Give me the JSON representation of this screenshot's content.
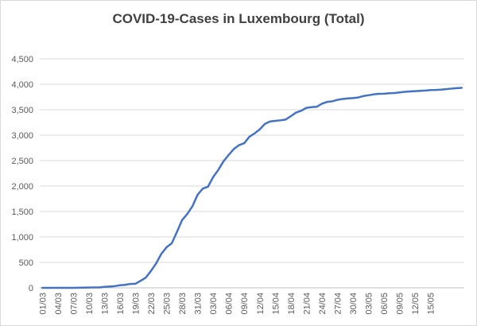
{
  "chart_data": {
    "type": "line",
    "title": "COVID-19-Cases in Luxembourg (Total)",
    "xlabel": "",
    "ylabel": "",
    "ylim": [
      0,
      4500
    ],
    "y_ticks": [
      0,
      500,
      1000,
      1500,
      2000,
      2500,
      3000,
      3500,
      4000,
      4500
    ],
    "y_tick_labels": [
      "0",
      "500",
      "1,000",
      "1,500",
      "2,000",
      "2,500",
      "3,000",
      "3,500",
      "4,000",
      "4,500"
    ],
    "x_tick_labels": [
      "01/03",
      "04/03",
      "07/03",
      "10/03",
      "13/03",
      "16/03",
      "19/03",
      "22/03",
      "25/03",
      "28/03",
      "31/03",
      "03/04",
      "06/04",
      "09/04",
      "12/04",
      "15/04",
      "18/04",
      "21/04",
      "24/04",
      "27/04",
      "30/04",
      "03/05",
      "06/05",
      "09/05",
      "12/05",
      "15/05"
    ],
    "grid": true,
    "legend": "none",
    "colors": {
      "line": "#4472c4",
      "grid": "#d9d9d9",
      "axis": "#bfbfbf"
    },
    "series": [
      {
        "x_start": "01/03",
        "values": [
          0,
          0,
          0,
          0,
          0,
          0,
          1,
          2,
          3,
          5,
          7,
          7,
          19,
          26,
          34,
          51,
          59,
          77,
          81,
          140,
          203,
          335,
          484,
          670,
          798,
          875,
          1099,
          1333,
          1453,
          1605,
          1831,
          1950,
          1988,
          2178,
          2319,
          2487,
          2612,
          2729,
          2804,
          2843,
          2970,
          3034,
          3115,
          3223,
          3270,
          3281,
          3292,
          3307,
          3373,
          3444,
          3480,
          3537,
          3550,
          3558,
          3618,
          3654,
          3665,
          3695,
          3711,
          3723,
          3729,
          3741,
          3769,
          3784,
          3802,
          3812,
          3815,
          3824,
          3828,
          3840,
          3851,
          3859,
          3866,
          3871,
          3877,
          3886,
          3888,
          3894,
          3904,
          3915,
          3923,
          3930
        ]
      }
    ]
  }
}
